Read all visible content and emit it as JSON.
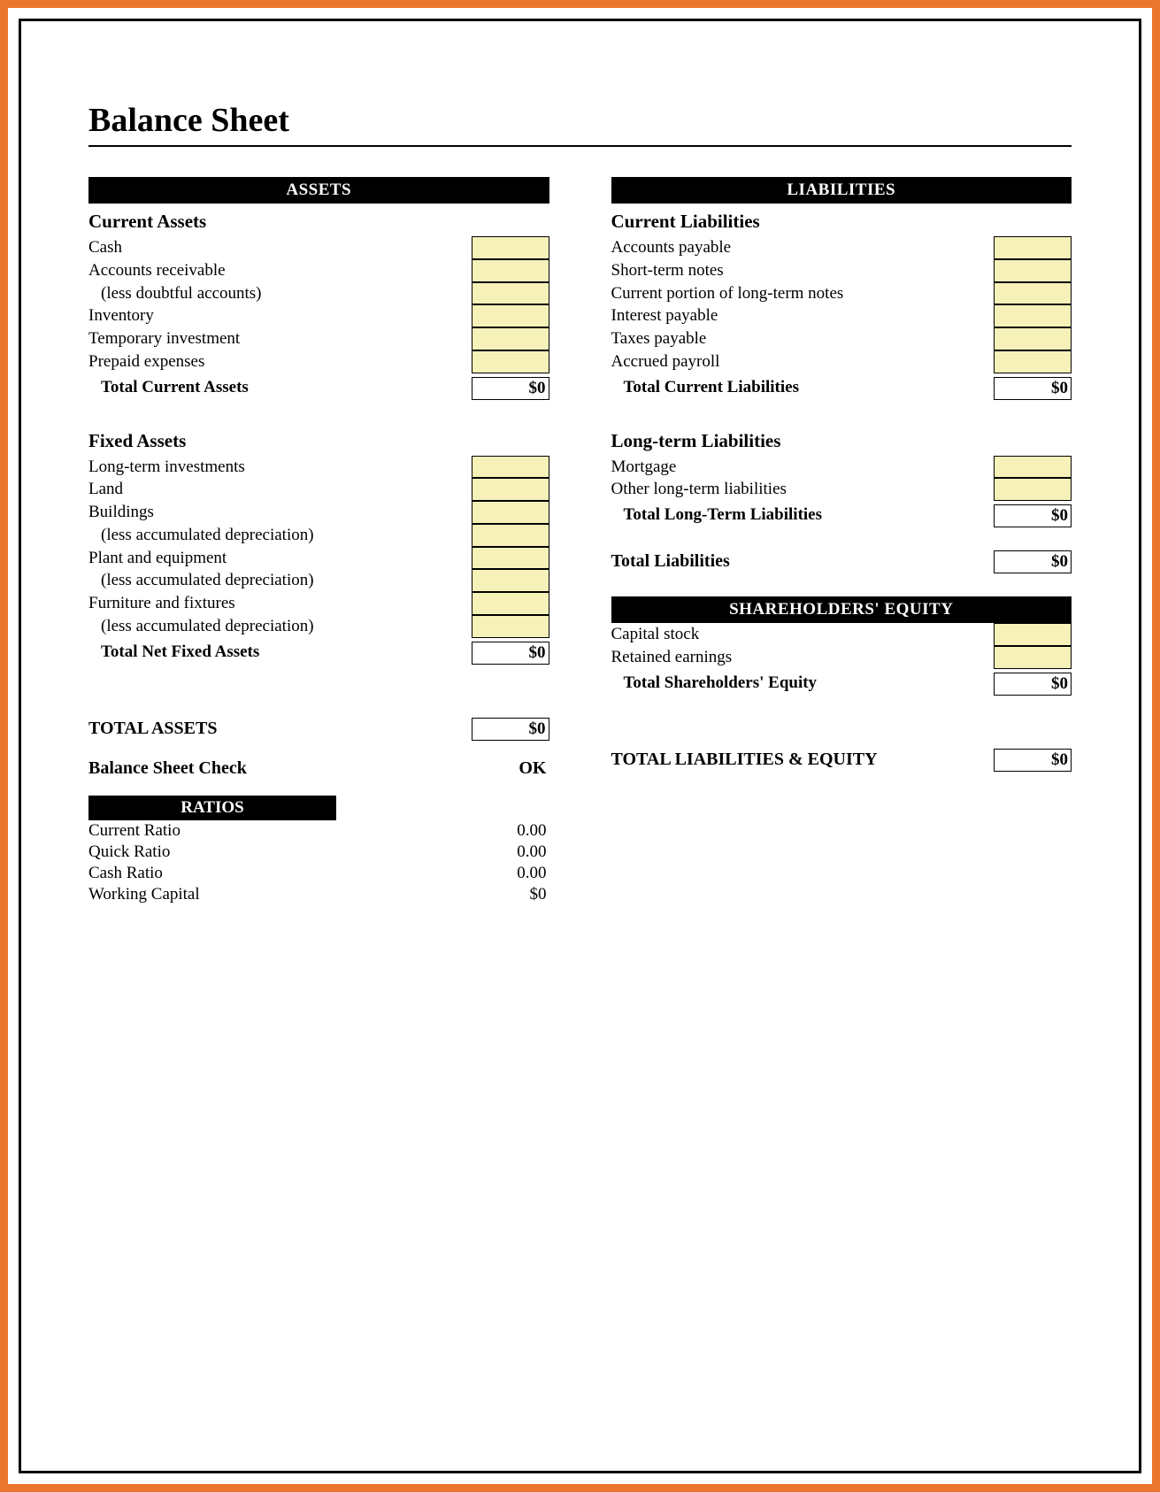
{
  "colors": {
    "frame_outer": "#e9762c",
    "frame_inner": "#000000",
    "header_bg": "#000000",
    "header_text": "#ffffff",
    "input_fill": "#f6f1b9",
    "cell_border": "#000000",
    "text": "#000000",
    "page_bg": "#ffffff"
  },
  "title": "Balance Sheet",
  "assets": {
    "header": "ASSETS",
    "current": {
      "title": "Current Assets",
      "items": [
        {
          "label": "Cash"
        },
        {
          "label": "Accounts receivable"
        },
        {
          "label": "(less doubtful accounts)",
          "indent": true
        },
        {
          "label": "Inventory"
        },
        {
          "label": "Temporary investment"
        },
        {
          "label": "Prepaid expenses"
        }
      ],
      "total_label": "Total Current Assets",
      "total_value": "$0"
    },
    "fixed": {
      "title": "Fixed Assets",
      "items": [
        {
          "label": "Long-term investments"
        },
        {
          "label": "Land"
        },
        {
          "label": "Buildings"
        },
        {
          "label": "(less accumulated depreciation)",
          "indent": true
        },
        {
          "label": "Plant and equipment"
        },
        {
          "label": "(less accumulated depreciation)",
          "indent": true
        },
        {
          "label": "Furniture and fixtures"
        },
        {
          "label": "(less accumulated depreciation)",
          "indent": true
        }
      ],
      "total_label": "Total Net Fixed Assets",
      "total_value": "$0"
    },
    "grand_total_label": "TOTAL ASSETS",
    "grand_total_value": "$0"
  },
  "liabilities": {
    "header": "LIABILITIES",
    "current": {
      "title": "Current Liabilities",
      "items": [
        {
          "label": "Accounts payable"
        },
        {
          "label": "Short-term notes"
        },
        {
          "label": "Current portion of long-term notes"
        },
        {
          "label": "Interest payable"
        },
        {
          "label": "Taxes payable"
        },
        {
          "label": "Accrued payroll"
        }
      ],
      "total_label": "Total Current Liabilities",
      "total_value": "$0"
    },
    "longterm": {
      "title": "Long-term Liabilities",
      "items": [
        {
          "label": "Mortgage"
        },
        {
          "label": "Other long-term liabilities"
        }
      ],
      "total_label": "Total Long-Term Liabilities",
      "total_value": "$0"
    },
    "total_liabilities_label": "Total Liabilities",
    "total_liabilities_value": "$0"
  },
  "equity": {
    "header": "SHAREHOLDERS' EQUITY",
    "items": [
      {
        "label": "Capital stock"
      },
      {
        "label": "Retained earnings"
      }
    ],
    "total_label": "Total Shareholders' Equity",
    "total_value": "$0",
    "grand_total_label": "TOTAL LIABILITIES & EQUITY",
    "grand_total_value": "$0"
  },
  "check": {
    "label": "Balance Sheet Check",
    "value": "OK"
  },
  "ratios": {
    "header": "RATIOS",
    "items": [
      {
        "label": "Current Ratio",
        "value": "0.00"
      },
      {
        "label": "Quick Ratio",
        "value": "0.00"
      },
      {
        "label": "Cash Ratio",
        "value": "0.00"
      },
      {
        "label": "Working Capital",
        "value": "$0"
      }
    ]
  }
}
